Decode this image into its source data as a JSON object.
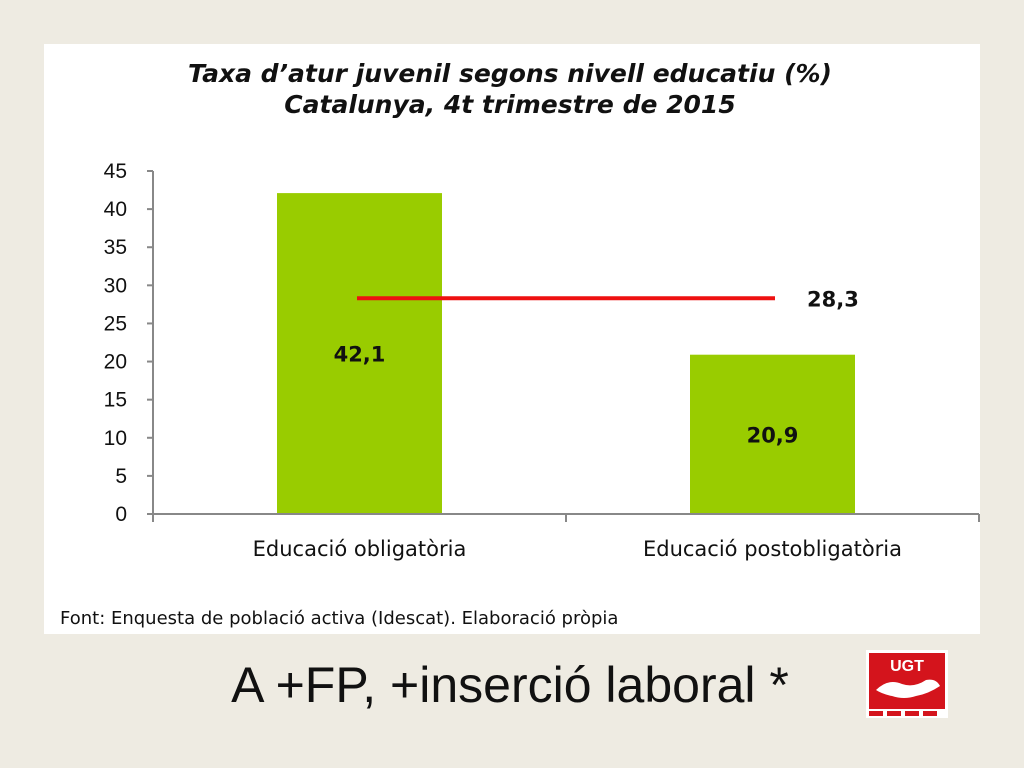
{
  "slide": {
    "caption": "A +FP, +inserció laboral *",
    "logo_text": "UGT"
  },
  "colors": {
    "background": "#eeebe2",
    "bar": "#99cc00",
    "average_line": "#ee1111",
    "axis": "#888888",
    "logo_red": "#d4141c"
  },
  "chart_data": {
    "type": "bar",
    "title_lines": [
      "Taxa d’atur juvenil segons nivell educatiu (%)",
      "Catalunya, 4t trimestre de 2015"
    ],
    "categories": [
      "Educació obligatòria",
      "Educació postobligatòria"
    ],
    "values": [
      42.1,
      20.9
    ],
    "value_labels": [
      "42,1",
      "20,9"
    ],
    "average": {
      "value": 28.3,
      "label": "28,3"
    },
    "ylim": [
      0,
      45
    ],
    "yticks": [
      0,
      5,
      10,
      15,
      20,
      25,
      30,
      35,
      40,
      45
    ],
    "source": "Font: Enquesta de població activa (Idescat). Elaboració pròpia",
    "grid": false,
    "legend": "none"
  }
}
